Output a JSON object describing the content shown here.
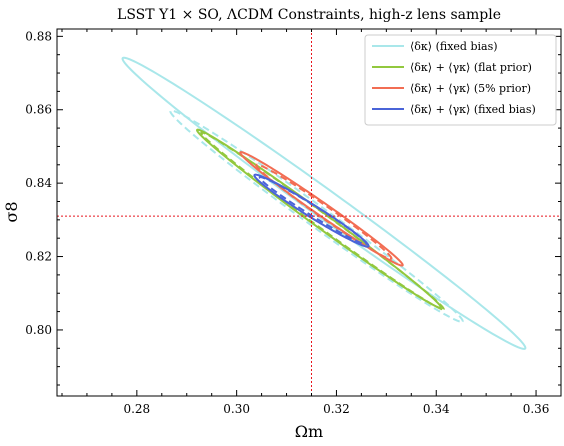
{
  "chart_data": {
    "type": "line",
    "title": "LSST Y1 × SO, ΛCDM Constraints, high-z lens sample",
    "xlabel": "Ωm",
    "ylabel": "σ8",
    "xlim": [
      0.264,
      0.365
    ],
    "ylim": [
      0.782,
      0.882
    ],
    "xticks": [
      0.28,
      0.3,
      0.32,
      0.34,
      0.36
    ],
    "xtick_labels": [
      "0.28",
      "0.30",
      "0.32",
      "0.34",
      "0.36"
    ],
    "yticks": [
      0.8,
      0.82,
      0.84,
      0.86,
      0.88
    ],
    "ytick_labels": [
      "0.80",
      "0.82",
      "0.84",
      "0.86",
      "0.88"
    ],
    "grid": false,
    "legend_position": "top-right",
    "fiducial": {
      "x": 0.315,
      "y": 0.831,
      "color": "#e8141c"
    },
    "series": [
      {
        "name": "⟨δκ⟩ (fixed bias)",
        "color": "#a9e7ea",
        "contours": [
          {
            "style": "solid",
            "cx": 0.3175,
            "cy": 0.8345,
            "a": 0.0565,
            "b": 0.00335,
            "angle": -44.5
          },
          {
            "style": "dashed",
            "cx": 0.316,
            "cy": 0.831,
            "a": 0.041,
            "b": 0.0025,
            "angle": -44.5
          }
        ]
      },
      {
        "name": "⟨δκ⟩ + ⟨γκ⟩ (flat prior)",
        "color": "#92c83e",
        "contours": [
          {
            "style": "solid",
            "cx": 0.3165,
            "cy": 0.8303,
            "a": 0.0344,
            "b": 0.0018,
            "angle": -44.8
          },
          {
            "style": "dashed",
            "cx": 0.3172,
            "cy": 0.8297,
            "a": 0.0342,
            "b": 0.00165,
            "angle": -44.8
          }
        ]
      },
      {
        "name": "⟨δκ⟩ + ⟨γκ⟩ (5% prior)",
        "color": "#f26d53",
        "contours": [
          {
            "style": "solid",
            "cx": 0.317,
            "cy": 0.833,
            "a": 0.0224,
            "b": 0.00155,
            "angle": -43.5
          },
          {
            "style": "dashed",
            "cx": 0.3175,
            "cy": 0.8322,
            "a": 0.0186,
            "b": 0.00145,
            "angle": -43.5
          }
        ]
      },
      {
        "name": "⟨δκ⟩ + ⟨γκ⟩ (fixed bias)",
        "color": "#4a64d8",
        "contours": [
          {
            "style": "solid",
            "cx": 0.315,
            "cy": 0.8325,
            "a": 0.015,
            "b": 0.0015,
            "angle": -40.5
          },
          {
            "style": "dashed",
            "cx": 0.3153,
            "cy": 0.8325,
            "a": 0.014,
            "b": 0.0012,
            "angle": -40.5
          }
        ]
      }
    ]
  }
}
